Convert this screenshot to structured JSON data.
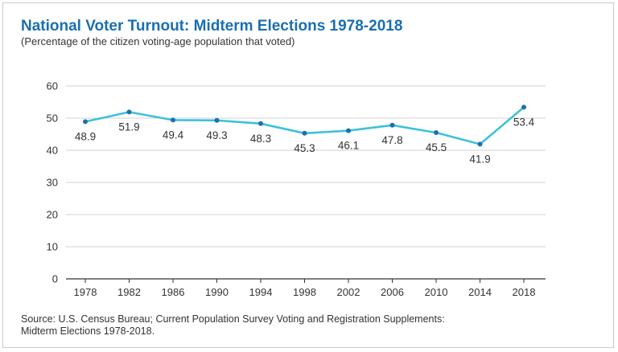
{
  "chart_data": {
    "type": "line",
    "title": "National Voter Turnout: Midterm Elections 1978-2018",
    "subtitle": "(Percentage of the citizen voting-age population that voted)",
    "categories": [
      "1978",
      "1982",
      "1986",
      "1990",
      "1994",
      "1998",
      "2002",
      "2006",
      "2010",
      "2014",
      "2018"
    ],
    "series": [
      {
        "name": "Voter turnout",
        "values": [
          48.9,
          51.9,
          49.4,
          49.3,
          48.3,
          45.3,
          46.1,
          47.8,
          45.5,
          41.9,
          53.4
        ]
      }
    ],
    "data_labels": [
      "48.9",
      "51.9",
      "49.4",
      "49.3",
      "48.3",
      "45.3",
      "46.1",
      "47.8",
      "45.5",
      "41.9",
      "53.4"
    ],
    "ylim": [
      0,
      60
    ],
    "yticks": [
      "0",
      "10",
      "20",
      "30",
      "40",
      "50",
      "60"
    ],
    "xlabel": "",
    "ylabel": "",
    "grid": true,
    "line_color": "#3fc1d9",
    "title_color": "#1a6fb0"
  },
  "source": {
    "line1": "Source: U.S. Census Bureau; Current Population Survey Voting and Registration Supplements:",
    "line2": "Midterm Elections 1978-2018."
  }
}
